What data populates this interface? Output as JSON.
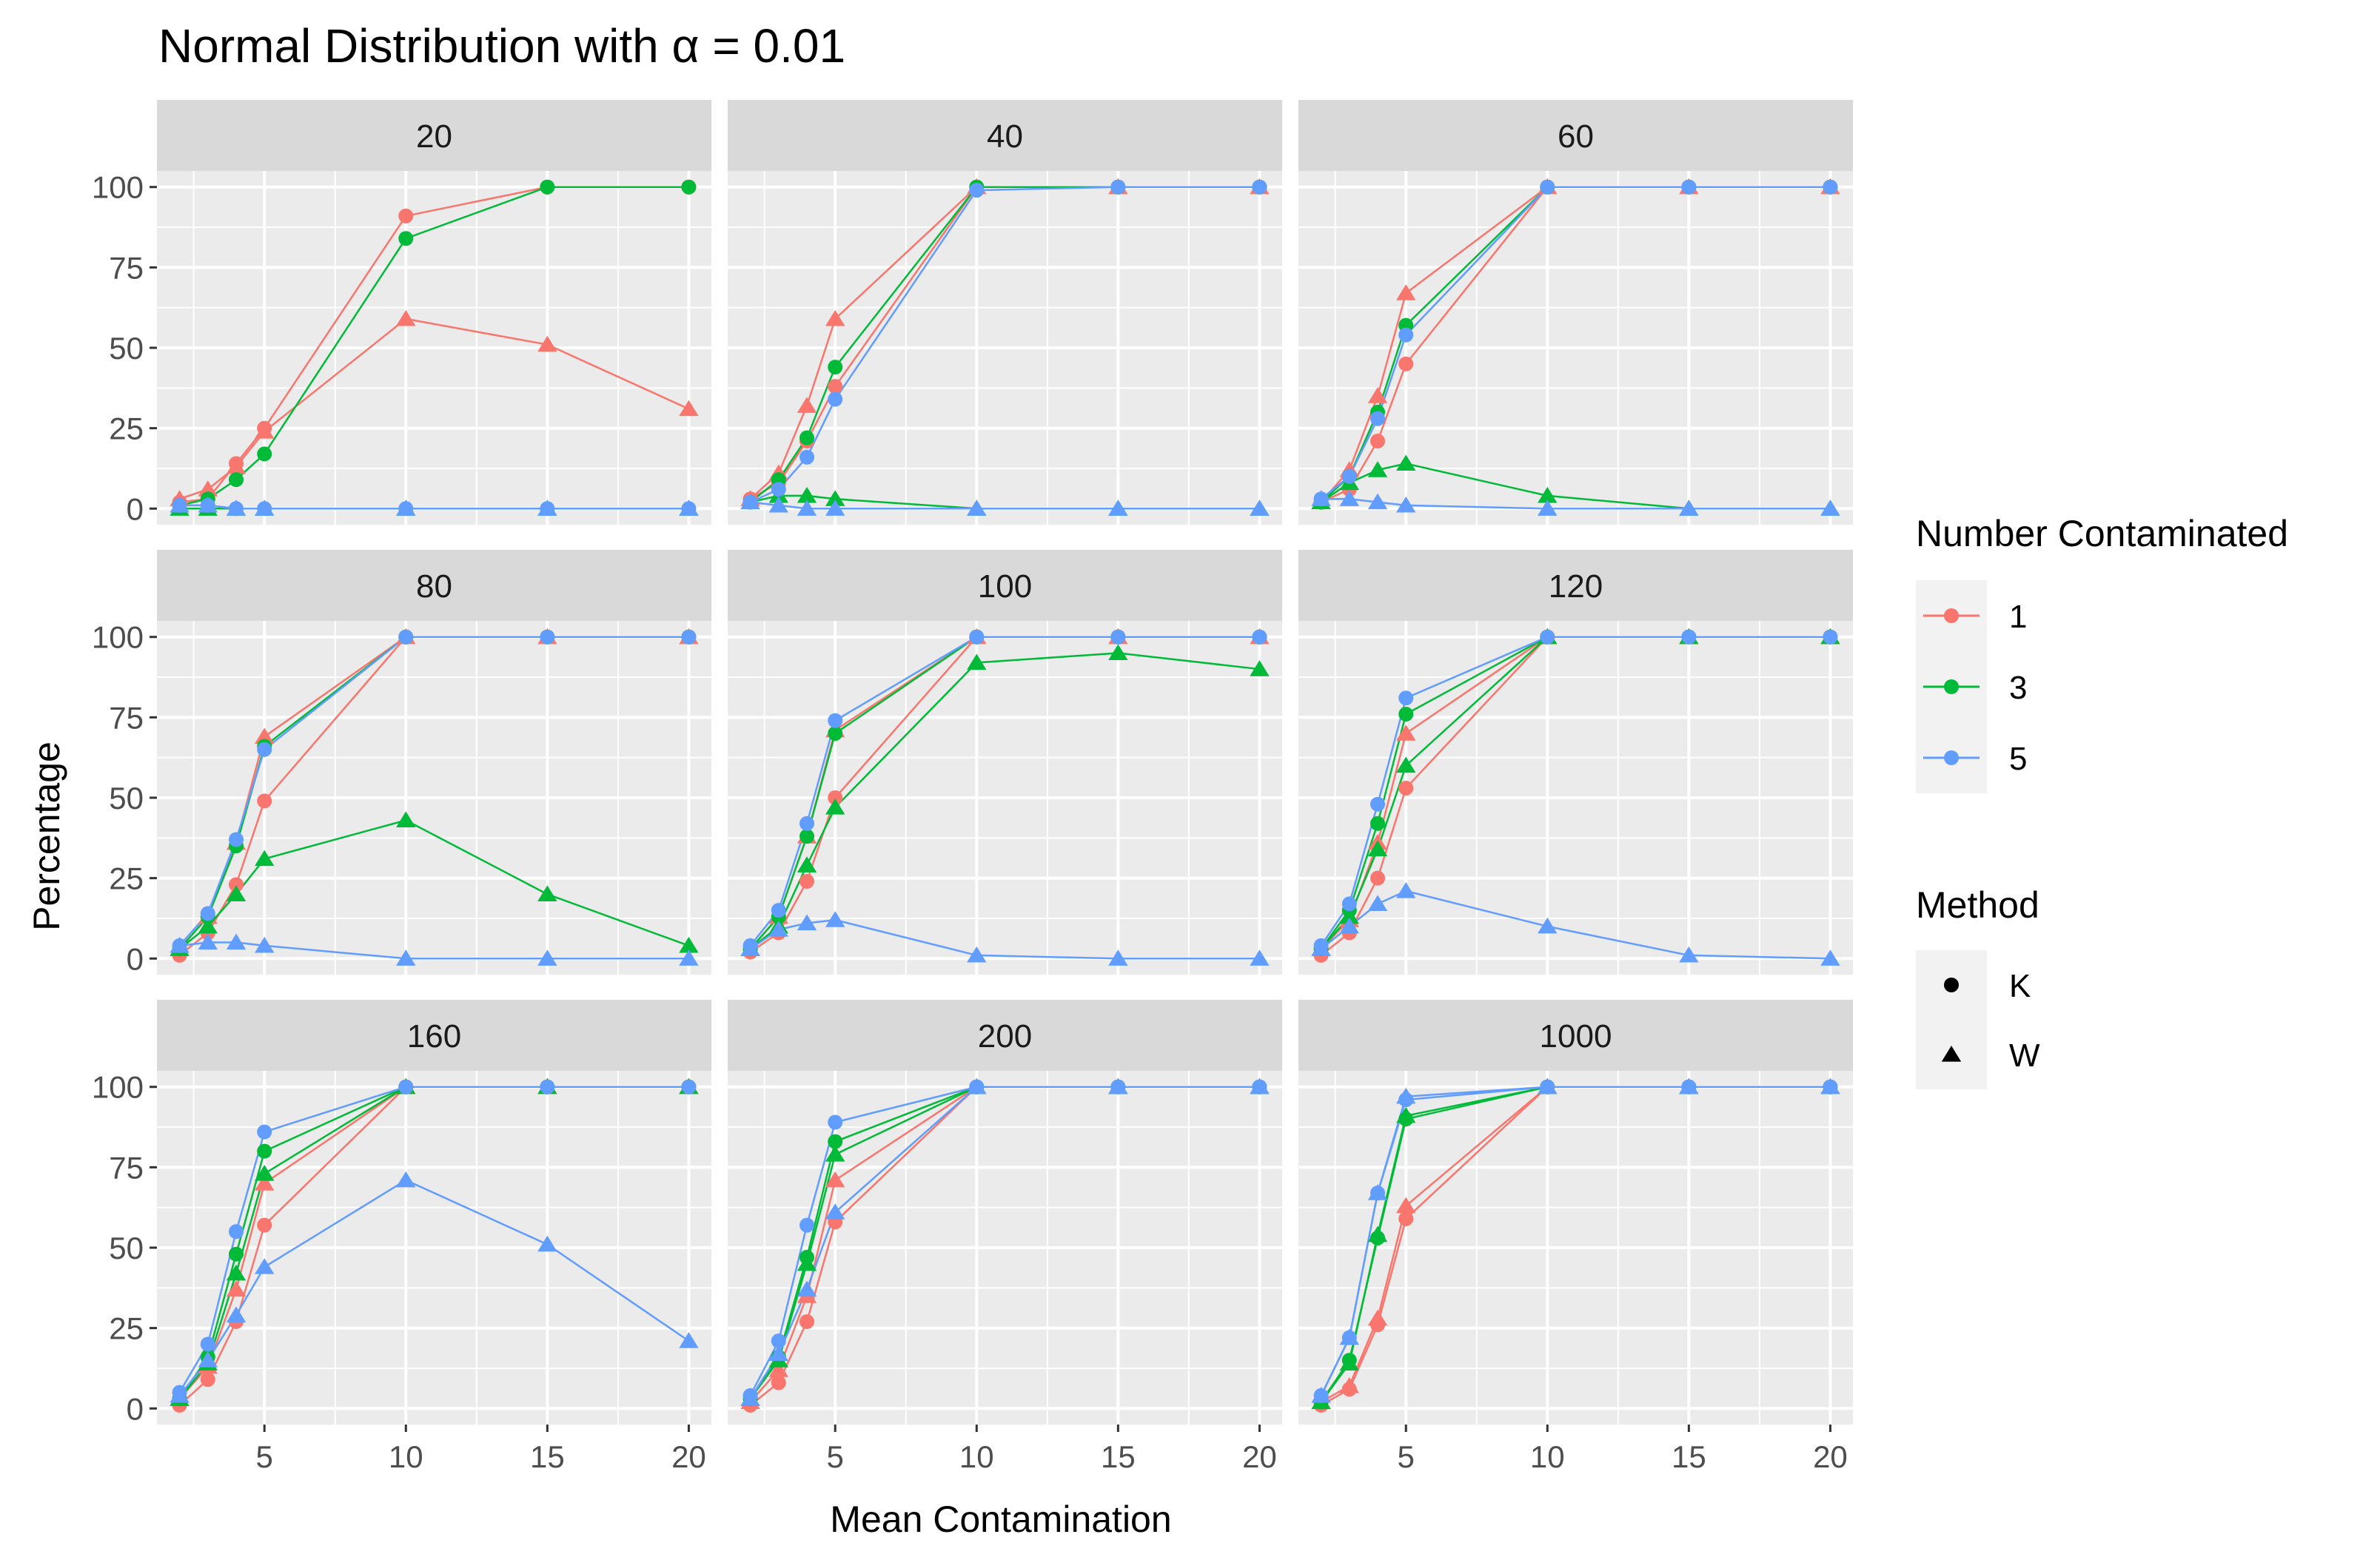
{
  "chart_data": {
    "type": "line",
    "title": "Normal Distribution with α = 0.01",
    "xlabel": "Mean Contamination",
    "ylabel": "Percentage",
    "xlim": [
      1.2,
      20.8
    ],
    "ylim": [
      -5,
      105
    ],
    "x_ticks": [
      5,
      10,
      15,
      20
    ],
    "x_tick_labels": [
      "5",
      "10",
      "15",
      "20"
    ],
    "y_ticks": [
      0,
      25,
      50,
      75,
      100
    ],
    "y_tick_labels": [
      "0",
      "25",
      "50",
      "75",
      "100"
    ],
    "grid": true,
    "legend_position": "right",
    "x": [
      2,
      3,
      4,
      5,
      10,
      15,
      20
    ],
    "legends": {
      "color": {
        "title": "Number Contaminated",
        "entries": [
          {
            "label": "1",
            "color": "#F8766D"
          },
          {
            "label": "3",
            "color": "#00BA38"
          },
          {
            "label": "5",
            "color": "#619CFF"
          }
        ]
      },
      "shape": {
        "title": "Method",
        "entries": [
          {
            "label": "K",
            "marker": "circle"
          },
          {
            "label": "W",
            "marker": "triangle"
          }
        ]
      }
    },
    "panels": [
      {
        "label": "20",
        "series": [
          {
            "group": "1",
            "method": "K",
            "values": [
              2,
              3,
              14,
              25,
              91,
              100,
              100
            ]
          },
          {
            "group": "1",
            "method": "W",
            "values": [
              3,
              6,
              13,
              24,
              59,
              51,
              31
            ]
          },
          {
            "group": "3",
            "method": "K",
            "values": [
              1,
              3,
              9,
              17,
              84,
              100,
              100
            ]
          },
          {
            "group": "3",
            "method": "W",
            "values": [
              0,
              0,
              0,
              0,
              0,
              0,
              0
            ]
          },
          {
            "group": "5",
            "method": "K",
            "values": [
              1,
              1,
              0,
              0,
              0,
              0,
              0
            ]
          },
          {
            "group": "5",
            "method": "W",
            "values": [
              1,
              1,
              0,
              0,
              0,
              0,
              0
            ]
          }
        ]
      },
      {
        "label": "40",
        "series": [
          {
            "group": "1",
            "method": "K",
            "values": [
              3,
              8,
              21,
              38,
              100,
              100,
              100
            ]
          },
          {
            "group": "1",
            "method": "W",
            "values": [
              3,
              11,
              32,
              59,
              100,
              100,
              100
            ]
          },
          {
            "group": "3",
            "method": "K",
            "values": [
              2,
              9,
              22,
              44,
              100,
              100,
              100
            ]
          },
          {
            "group": "3",
            "method": "W",
            "values": [
              2,
              4,
              4,
              3,
              0,
              0,
              0
            ]
          },
          {
            "group": "5",
            "method": "K",
            "values": [
              2,
              6,
              16,
              34,
              99,
              100,
              100
            ]
          },
          {
            "group": "5",
            "method": "W",
            "values": [
              2,
              1,
              0,
              0,
              0,
              0,
              0
            ]
          }
        ]
      },
      {
        "label": "60",
        "series": [
          {
            "group": "1",
            "method": "K",
            "values": [
              2,
              6,
              21,
              45,
              100,
              100,
              100
            ]
          },
          {
            "group": "1",
            "method": "W",
            "values": [
              2,
              12,
              35,
              67,
              100,
              100,
              100
            ]
          },
          {
            "group": "3",
            "method": "K",
            "values": [
              2,
              10,
              30,
              57,
              100,
              100,
              100
            ]
          },
          {
            "group": "3",
            "method": "W",
            "values": [
              2,
              8,
              12,
              14,
              4,
              0,
              0
            ]
          },
          {
            "group": "5",
            "method": "K",
            "values": [
              3,
              10,
              28,
              54,
              100,
              100,
              100
            ]
          },
          {
            "group": "5",
            "method": "W",
            "values": [
              3,
              3,
              2,
              1,
              0,
              0,
              0
            ]
          }
        ]
      },
      {
        "label": "80",
        "series": [
          {
            "group": "1",
            "method": "K",
            "values": [
              1,
              8,
              23,
              49,
              100,
              100,
              100
            ]
          },
          {
            "group": "1",
            "method": "W",
            "values": [
              3,
              13,
              36,
              69,
              100,
              100,
              100
            ]
          },
          {
            "group": "3",
            "method": "K",
            "values": [
              3,
              13,
              35,
              66,
              100,
              100,
              100
            ]
          },
          {
            "group": "3",
            "method": "W",
            "values": [
              3,
              10,
              20,
              31,
              43,
              20,
              4
            ]
          },
          {
            "group": "5",
            "method": "K",
            "values": [
              4,
              14,
              37,
              65,
              100,
              100,
              100
            ]
          },
          {
            "group": "5",
            "method": "W",
            "values": [
              4,
              5,
              5,
              4,
              0,
              0,
              0
            ]
          }
        ]
      },
      {
        "label": "100",
        "series": [
          {
            "group": "1",
            "method": "K",
            "values": [
              2,
              8,
              24,
              50,
              100,
              100,
              100
            ]
          },
          {
            "group": "1",
            "method": "W",
            "values": [
              3,
              13,
              38,
              71,
              100,
              100,
              100
            ]
          },
          {
            "group": "3",
            "method": "K",
            "values": [
              3,
              13,
              38,
              70,
              100,
              100,
              100
            ]
          },
          {
            "group": "3",
            "method": "W",
            "values": [
              3,
              10,
              29,
              47,
              92,
              95,
              90
            ]
          },
          {
            "group": "5",
            "method": "K",
            "values": [
              4,
              15,
              42,
              74,
              100,
              100,
              100
            ]
          },
          {
            "group": "5",
            "method": "W",
            "values": [
              3,
              9,
              11,
              12,
              1,
              0,
              0
            ]
          }
        ]
      },
      {
        "label": "120",
        "series": [
          {
            "group": "1",
            "method": "K",
            "values": [
              1,
              8,
              25,
              53,
              100,
              100,
              100
            ]
          },
          {
            "group": "1",
            "method": "W",
            "values": [
              3,
              12,
              36,
              70,
              100,
              100,
              100
            ]
          },
          {
            "group": "3",
            "method": "K",
            "values": [
              3,
              15,
              42,
              76,
              100,
              100,
              100
            ]
          },
          {
            "group": "3",
            "method": "W",
            "values": [
              3,
              13,
              34,
              60,
              100,
              100,
              100
            ]
          },
          {
            "group": "5",
            "method": "K",
            "values": [
              4,
              17,
              48,
              81,
              100,
              100,
              100
            ]
          },
          {
            "group": "5",
            "method": "W",
            "values": [
              3,
              10,
              17,
              21,
              10,
              1,
              0
            ]
          }
        ]
      },
      {
        "label": "160",
        "series": [
          {
            "group": "1",
            "method": "K",
            "values": [
              1,
              9,
              27,
              57,
              100,
              100,
              100
            ]
          },
          {
            "group": "1",
            "method": "W",
            "values": [
              3,
              13,
              37,
              70,
              100,
              100,
              100
            ]
          },
          {
            "group": "3",
            "method": "K",
            "values": [
              3,
              16,
              48,
              80,
              100,
              100,
              100
            ]
          },
          {
            "group": "3",
            "method": "W",
            "values": [
              3,
              14,
              42,
              73,
              100,
              100,
              100
            ]
          },
          {
            "group": "5",
            "method": "K",
            "values": [
              5,
              20,
              55,
              86,
              100,
              100,
              100
            ]
          },
          {
            "group": "5",
            "method": "W",
            "values": [
              4,
              15,
              29,
              44,
              71,
              51,
              21
            ]
          }
        ]
      },
      {
        "label": "200",
        "series": [
          {
            "group": "1",
            "method": "K",
            "values": [
              1,
              8,
              27,
              58,
              100,
              100,
              100
            ]
          },
          {
            "group": "1",
            "method": "W",
            "values": [
              2,
              12,
              35,
              71,
              100,
              100,
              100
            ]
          },
          {
            "group": "3",
            "method": "K",
            "values": [
              3,
              16,
              47,
              83,
              100,
              100,
              100
            ]
          },
          {
            "group": "3",
            "method": "W",
            "values": [
              3,
              15,
              45,
              79,
              100,
              100,
              100
            ]
          },
          {
            "group": "5",
            "method": "K",
            "values": [
              4,
              21,
              57,
              89,
              100,
              100,
              100
            ]
          },
          {
            "group": "5",
            "method": "W",
            "values": [
              3,
              17,
              37,
              61,
              100,
              100,
              100
            ]
          }
        ]
      },
      {
        "label": "1000",
        "series": [
          {
            "group": "1",
            "method": "K",
            "values": [
              1,
              6,
              26,
              59,
              100,
              100,
              100
            ]
          },
          {
            "group": "1",
            "method": "W",
            "values": [
              2,
              7,
              28,
              63,
              100,
              100,
              100
            ]
          },
          {
            "group": "3",
            "method": "K",
            "values": [
              2,
              15,
              53,
              90,
              100,
              100,
              100
            ]
          },
          {
            "group": "3",
            "method": "W",
            "values": [
              2,
              14,
              54,
              91,
              100,
              100,
              100
            ]
          },
          {
            "group": "5",
            "method": "K",
            "values": [
              4,
              22,
              67,
              96,
              100,
              100,
              100
            ]
          },
          {
            "group": "5",
            "method": "W",
            "values": [
              4,
              22,
              67,
              97,
              100,
              100,
              100
            ]
          }
        ]
      }
    ]
  }
}
